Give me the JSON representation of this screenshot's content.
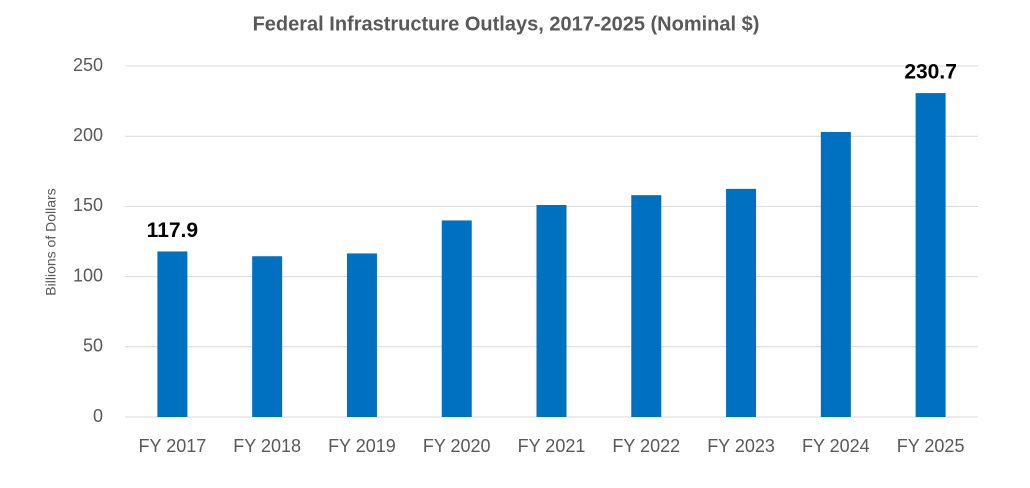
{
  "chart_data": {
    "type": "bar",
    "title": "Federal Infrastructure Outlays, 2017-2025 (Nominal $)",
    "y_label": "Billions of Dollars",
    "categories": [
      "FY 2017",
      "FY 2018",
      "FY 2019",
      "FY 2020",
      "FY 2021",
      "FY 2022",
      "FY 2023",
      "FY 2024",
      "FY 2025"
    ],
    "values": [
      117.9,
      114.5,
      116.5,
      140,
      151,
      158,
      162.5,
      203,
      230.7
    ],
    "value_labels": [
      "117.9",
      null,
      null,
      null,
      null,
      null,
      null,
      null,
      "230.7"
    ],
    "color": "#0070c0",
    "ylim": [
      0,
      250
    ],
    "yticks": [
      0,
      50,
      100,
      150,
      200,
      250
    ],
    "grid": true
  }
}
